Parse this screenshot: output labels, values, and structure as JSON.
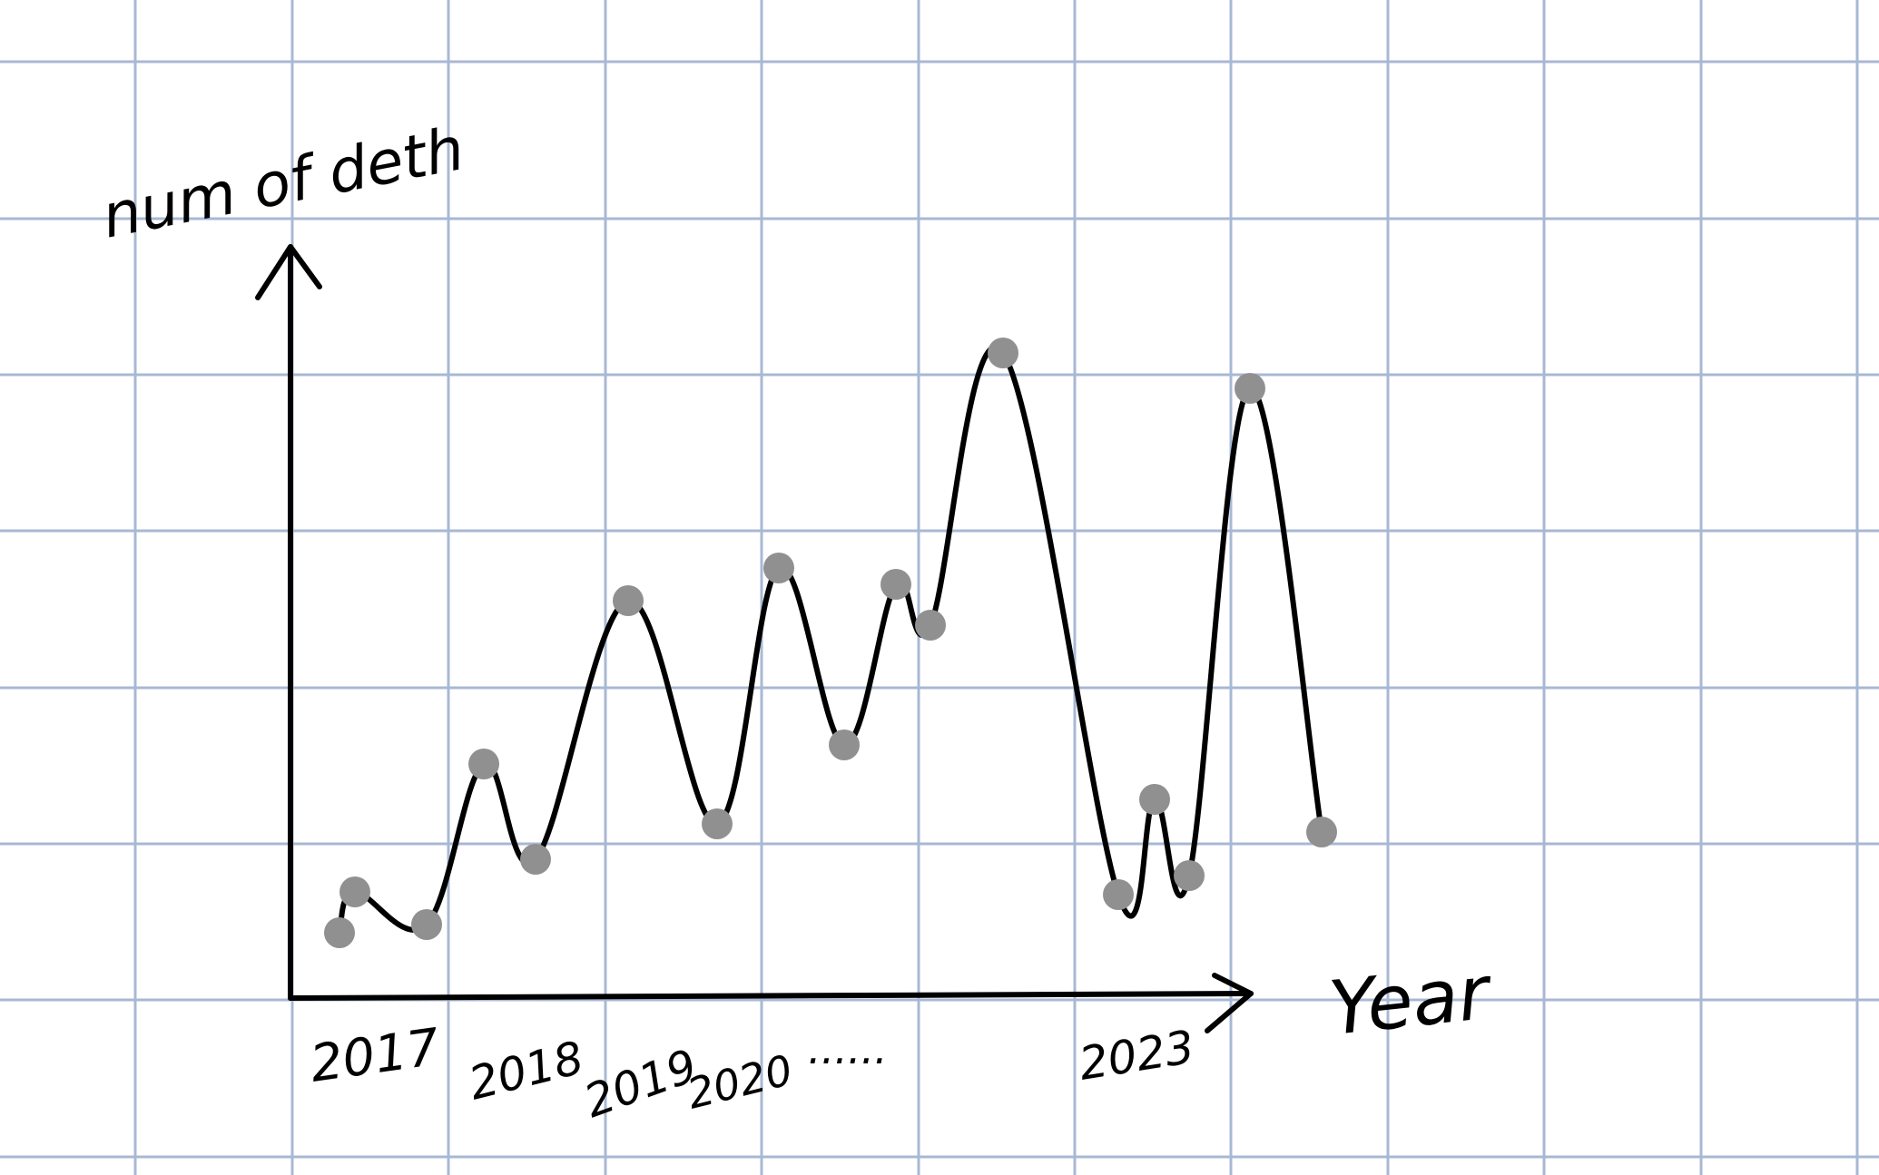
{
  "chart_data": {
    "type": "line",
    "title": "",
    "xlabel": "Year",
    "ylabel": "num of deth",
    "x_tick_labels": [
      "2017",
      "2018",
      "2019",
      "2020",
      "......",
      "2023"
    ],
    "y_tick_labels": [],
    "grid": true,
    "legend": "none",
    "series": [
      {
        "values": [
          0.24,
          0.39,
          0.27,
          0.86,
          0.51,
          1.46,
          0.64,
          1.58,
          0.93,
          1.52,
          1.37,
          2.37,
          0.38,
          0.73,
          0.45,
          2.24,
          0.61
        ]
      }
    ]
  },
  "colors": {
    "grid": "#a8b8d4",
    "ink": "#000000",
    "marker": "#909090"
  }
}
